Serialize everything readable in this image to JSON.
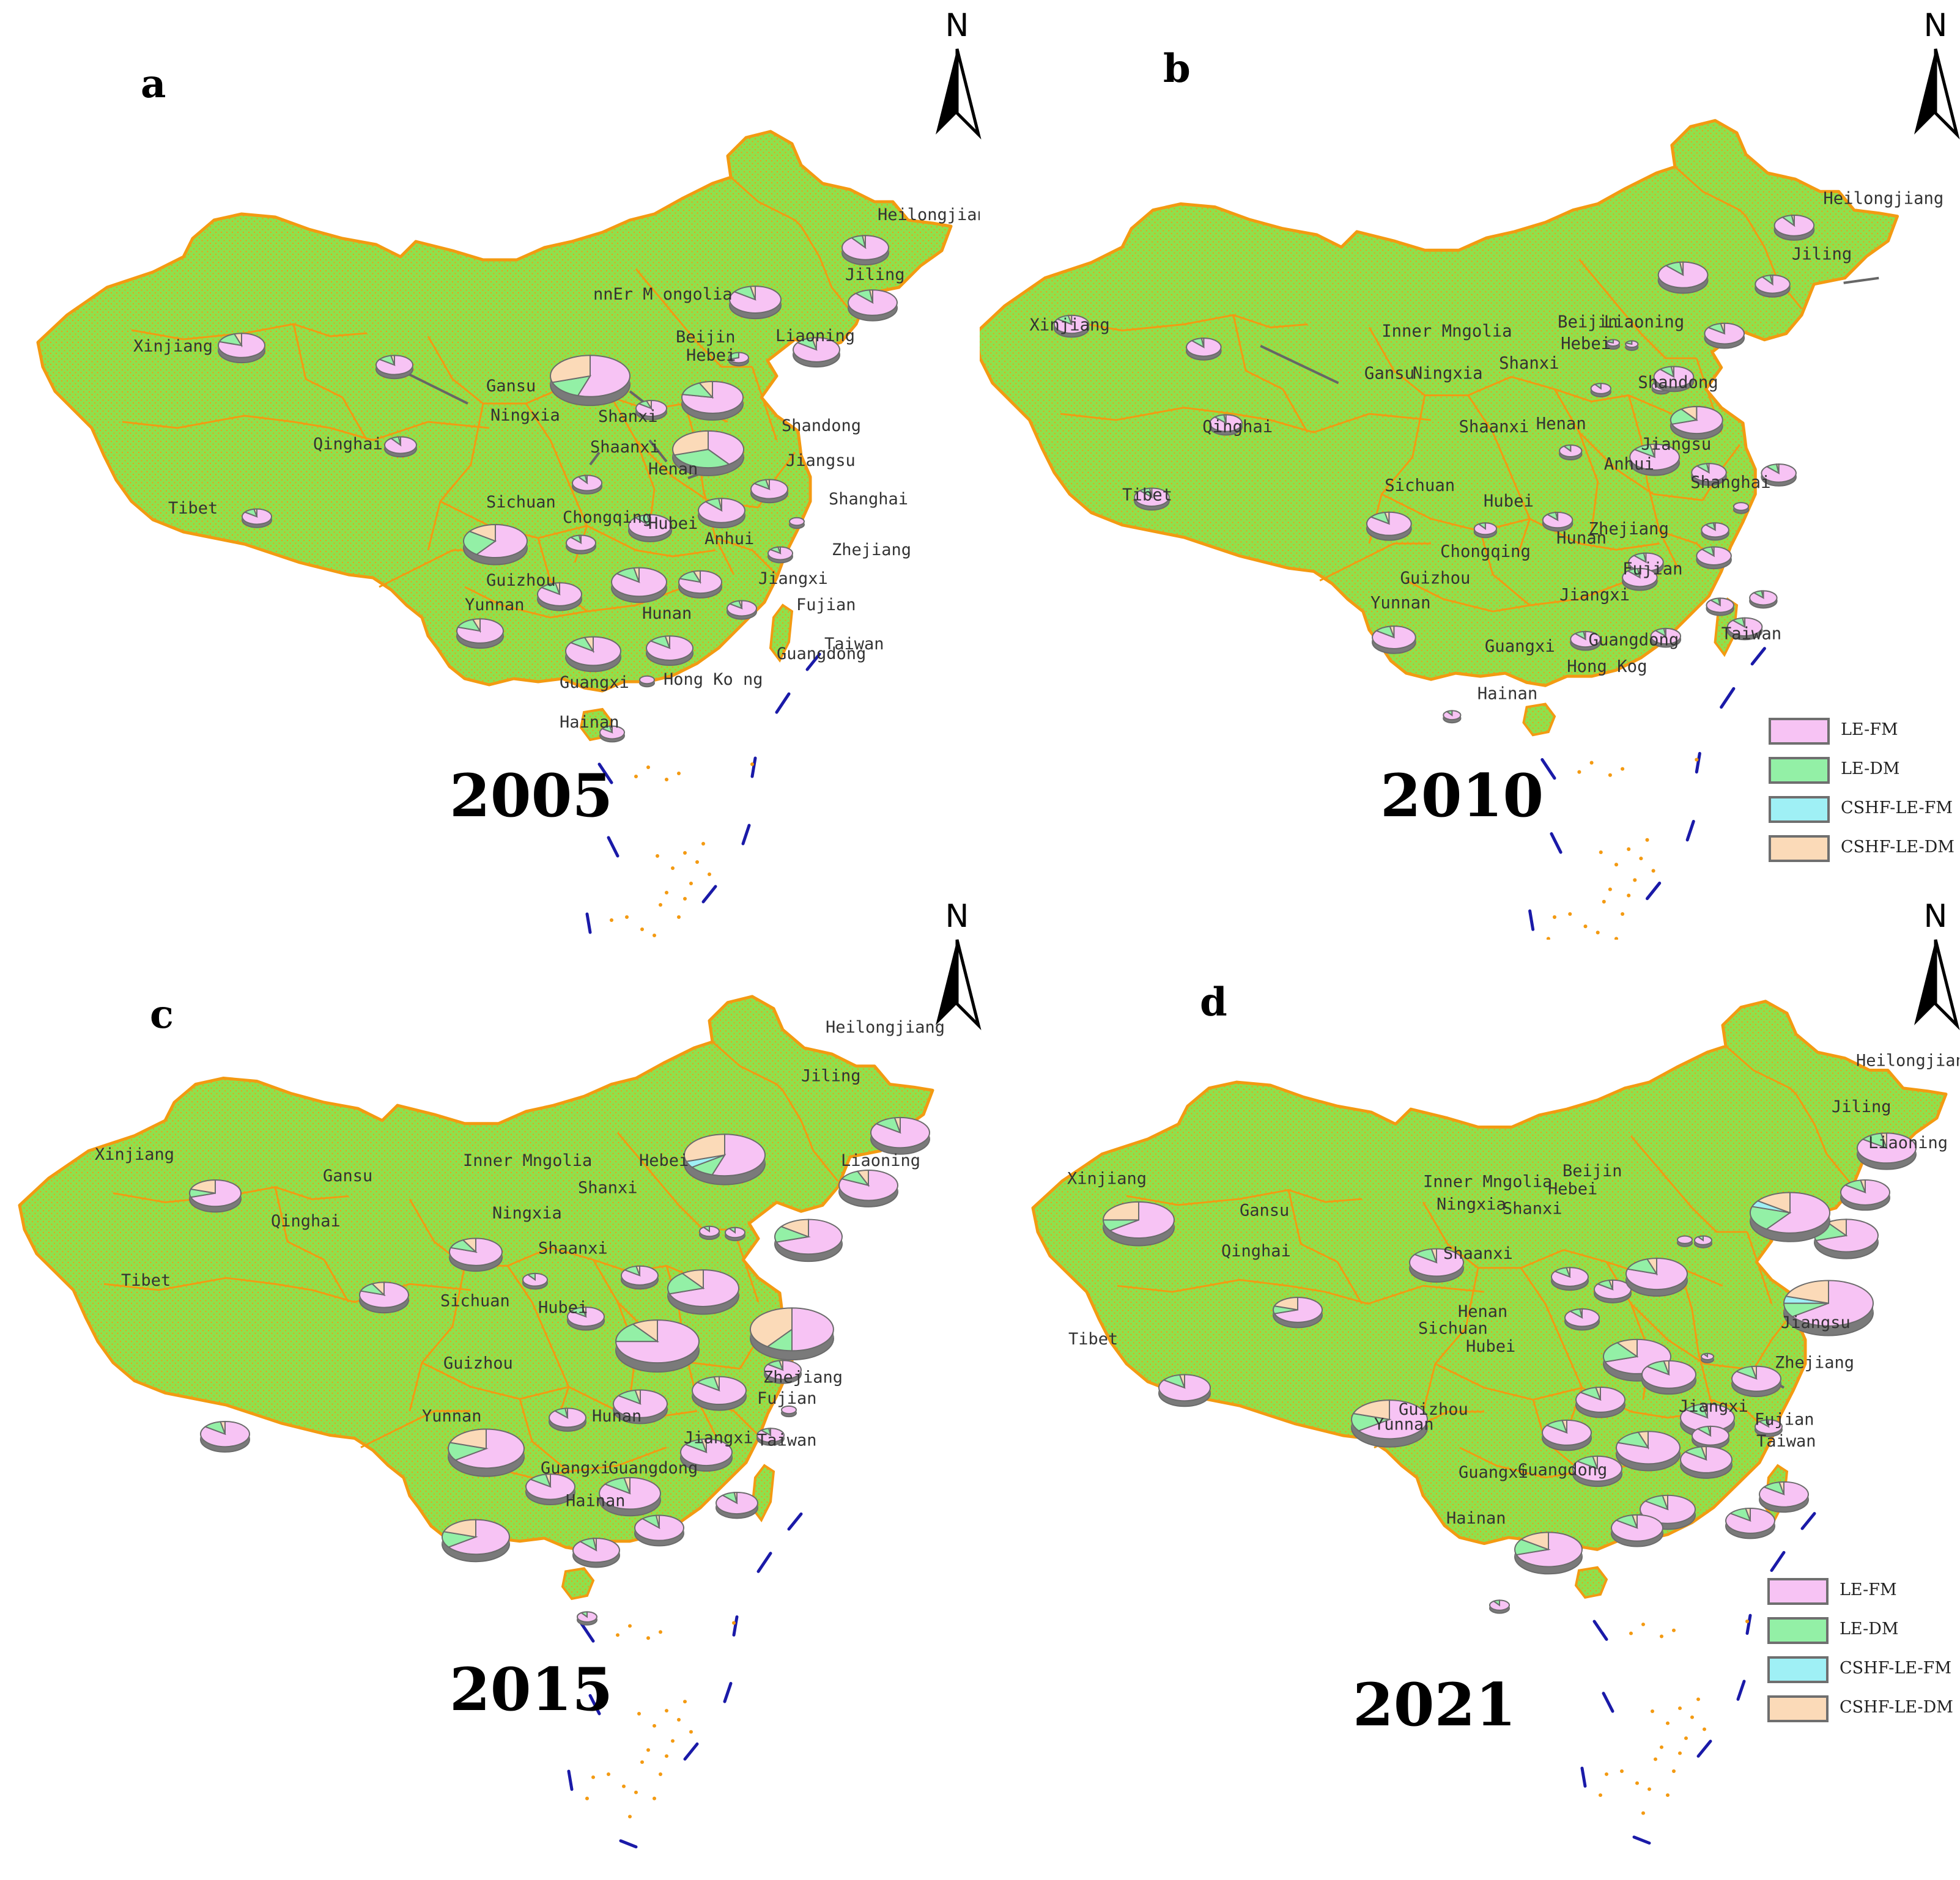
{
  "colors": {
    "land": "#8fe04c",
    "border": "#f39a12",
    "nine_dash": "#1a1aa8",
    "pie_edge": "#6b6b6b",
    "pie_side": "#7a7a7a",
    "LE-FM": "#f7c3f4",
    "LE-DM": "#93f0a6",
    "CSHF-LE-FM": "#9ff0f5",
    "CSHF-LE-DM": "#fbdab8"
  },
  "north_label": "N",
  "legend": [
    "LE-FM",
    "LE-DM",
    "CSHF-LE-FM",
    "CSHF-LE-DM"
  ],
  "panels": [
    {
      "letter": "a",
      "year": "2005",
      "labels": [
        "Heilongjiang",
        "Jiling",
        "nnEr M ongolia",
        "Xinjiang",
        "Beijin",
        "Liaoning",
        "Hebei",
        "Gansu",
        "Ningxia",
        "Shanxi",
        "Qinghai",
        "Shandong",
        "Shaanxi",
        "Henan",
        "Jiangsu",
        "Tibet",
        "Sichuan",
        "Chongqing",
        "Hubei",
        "Shanghai",
        "Anhui",
        "Zhejiang",
        "Guizhou",
        "Jiangxi",
        "Yunnan",
        "Fujian",
        "Hunan",
        "Taiwan",
        "Guangdong",
        "Guangxi",
        "Hong Ko ng",
        "Hainan"
      ]
    },
    {
      "letter": "b",
      "year": "2010",
      "labels": [
        "Heilongjiang",
        "Jiling",
        "Xinjiang",
        "Inner Mngolia",
        "Beijin",
        "Liaoning",
        "Hebei",
        "Gansu",
        "Ningxia",
        "Shanxi",
        "Shandong",
        "Qinghai",
        "Shaanxi",
        "Henan",
        "Jiangsu",
        "Anhui",
        "Shanghai",
        "Tibet",
        "Sichuan",
        "Hubei",
        "Zhejiang",
        "Chongqing",
        "Hunan",
        "Guizhou",
        "Fujian",
        "Jiangxi",
        "Yunnan",
        "Guangxi",
        "Guangdong",
        "Taiwan",
        "Hong Kog",
        "Hainan"
      ]
    },
    {
      "letter": "c",
      "year": "2015",
      "labels": [
        "Heilongjiang",
        "Jiling",
        "Liaoning",
        "Xinjiang",
        "Inner Mngolia",
        "Hebei",
        "Gansu",
        "Shanxi",
        "Qinghai",
        "Ningxia",
        "Shaanxi",
        "Tibet",
        "Sichuan",
        "Hubei",
        "Guizhou",
        "Zhejiang",
        "Fujian",
        "Yunnan",
        "Hunan",
        "Jiangxi",
        "Taiwan",
        "Guangxi",
        "Guangdong",
        "Hainan"
      ]
    },
    {
      "letter": "d",
      "year": "2021",
      "labels": [
        "Heilongjiang",
        "Jiling",
        "Liaoning",
        "Xinjiang",
        "Inner Mngolia",
        "Beijin",
        "Hebei",
        "Gansu",
        "Ningxia",
        "Shanxi",
        "Qinghai",
        "Shaanxi",
        "Henan",
        "Jiangsu",
        "Tibet",
        "Sichuan",
        "Hubei",
        "Zhejiang",
        "Guizhou",
        "Jiangxi",
        "Yunnan",
        "Fujian",
        "Taiwan",
        "Guangxi",
        "Guangdong",
        "Hainan"
      ]
    }
  ]
}
